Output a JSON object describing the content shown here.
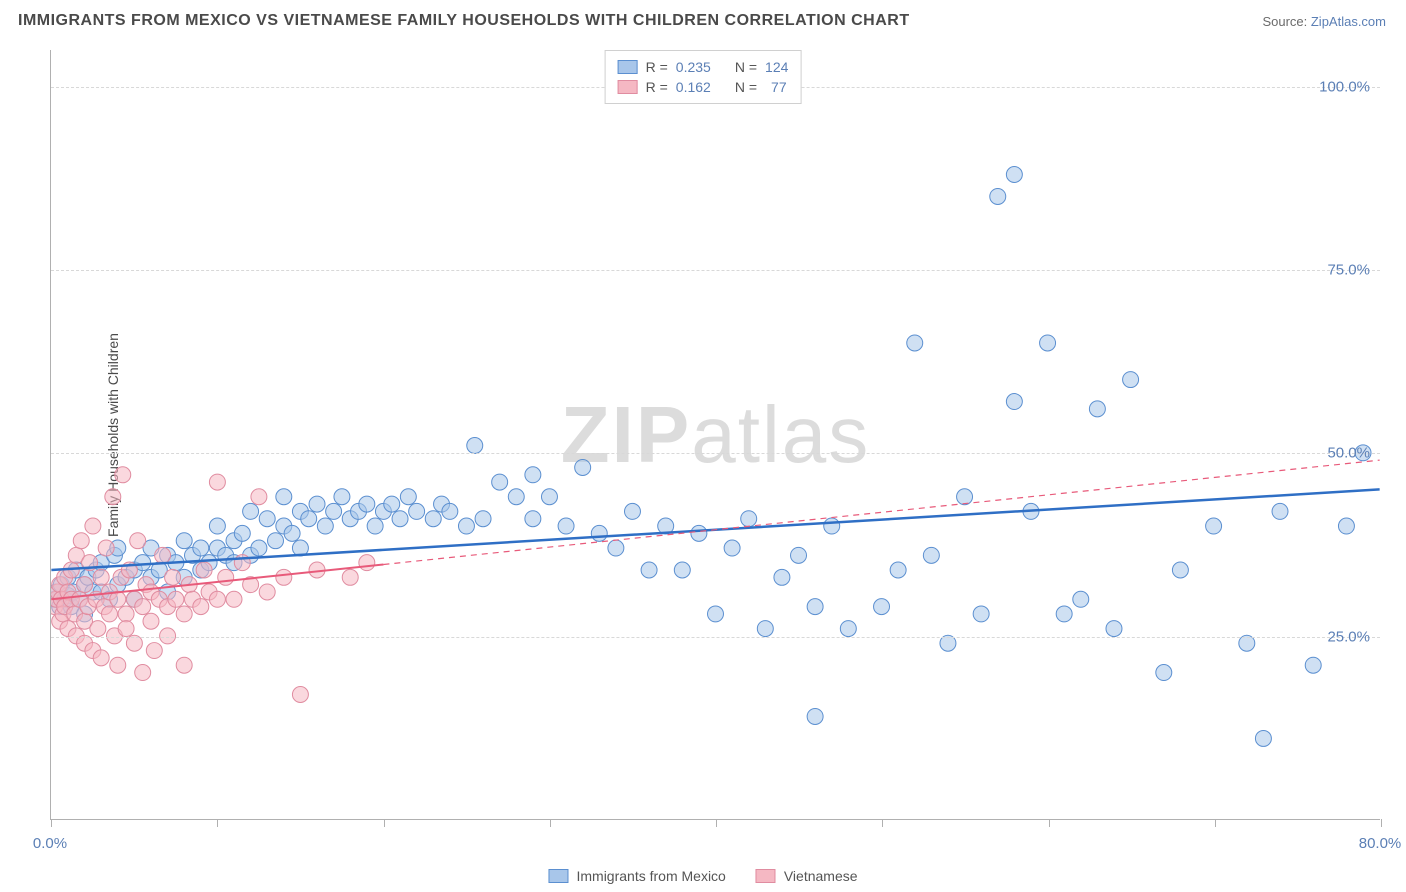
{
  "title": "IMMIGRANTS FROM MEXICO VS VIETNAMESE FAMILY HOUSEHOLDS WITH CHILDREN CORRELATION CHART",
  "source_prefix": "Source: ",
  "source_name": "ZipAtlas.com",
  "watermark_bold": "ZIP",
  "watermark_light": "atlas",
  "ylabel": "Family Households with Children",
  "chart": {
    "type": "scatter",
    "xlim": [
      0,
      80
    ],
    "ylim": [
      0,
      105
    ],
    "x_ticks": [
      0,
      10,
      20,
      30,
      40,
      50,
      60,
      70,
      80
    ],
    "y_gridlines": [
      25,
      50,
      75,
      100
    ],
    "x_tick_labels": {
      "0": "0.0%",
      "80": "80.0%"
    },
    "y_tick_labels": {
      "25": "25.0%",
      "50": "50.0%",
      "75": "75.0%",
      "100": "100.0%"
    },
    "background_color": "#ffffff",
    "grid_color": "#d8d8d8",
    "axis_color": "#b0b0b0",
    "tick_label_color": "#5b7fb5",
    "marker_radius": 8,
    "marker_opacity": 0.55,
    "series": [
      {
        "name": "Immigrants from Mexico",
        "fill_color": "#a8c6ea",
        "stroke_color": "#5b8fd0",
        "line_color": "#2f6fc5",
        "line_width": 2.5,
        "line_dash": "",
        "r_value": "0.235",
        "n_value": "124",
        "trend": {
          "x1": 0,
          "y1": 34,
          "x2": 80,
          "y2": 45
        },
        "extrapolate": false,
        "points": [
          [
            0.2,
            30
          ],
          [
            0.3,
            31
          ],
          [
            0.5,
            29
          ],
          [
            0.6,
            32
          ],
          [
            0.8,
            30
          ],
          [
            1,
            30.5
          ],
          [
            1,
            33
          ],
          [
            1.2,
            29
          ],
          [
            1.3,
            31
          ],
          [
            1.5,
            34
          ],
          [
            1.7,
            30
          ],
          [
            2,
            32
          ],
          [
            2,
            28
          ],
          [
            2.2,
            33
          ],
          [
            2.5,
            31
          ],
          [
            2.7,
            34
          ],
          [
            3,
            31
          ],
          [
            3,
            35
          ],
          [
            3.5,
            30
          ],
          [
            3.8,
            36
          ],
          [
            4,
            32
          ],
          [
            4,
            37
          ],
          [
            4.5,
            33
          ],
          [
            5,
            34
          ],
          [
            5,
            30
          ],
          [
            5.5,
            35
          ],
          [
            6,
            33
          ],
          [
            6,
            37
          ],
          [
            6.5,
            34
          ],
          [
            7,
            36
          ],
          [
            7,
            31
          ],
          [
            7.5,
            35
          ],
          [
            8,
            33
          ],
          [
            8,
            38
          ],
          [
            8.5,
            36
          ],
          [
            9,
            37
          ],
          [
            9,
            34
          ],
          [
            9.5,
            35
          ],
          [
            10,
            37
          ],
          [
            10,
            40
          ],
          [
            10.5,
            36
          ],
          [
            11,
            38
          ],
          [
            11,
            35
          ],
          [
            11.5,
            39
          ],
          [
            12,
            36
          ],
          [
            12,
            42
          ],
          [
            12.5,
            37
          ],
          [
            13,
            41
          ],
          [
            13.5,
            38
          ],
          [
            14,
            40
          ],
          [
            14,
            44
          ],
          [
            14.5,
            39
          ],
          [
            15,
            42
          ],
          [
            15,
            37
          ],
          [
            15.5,
            41
          ],
          [
            16,
            43
          ],
          [
            16.5,
            40
          ],
          [
            17,
            42
          ],
          [
            17.5,
            44
          ],
          [
            18,
            41
          ],
          [
            18.5,
            42
          ],
          [
            19,
            43
          ],
          [
            19.5,
            40
          ],
          [
            20,
            42
          ],
          [
            20.5,
            43
          ],
          [
            21,
            41
          ],
          [
            21.5,
            44
          ],
          [
            22,
            42
          ],
          [
            23,
            41
          ],
          [
            23.5,
            43
          ],
          [
            24,
            42
          ],
          [
            25,
            40
          ],
          [
            25.5,
            51
          ],
          [
            26,
            41
          ],
          [
            27,
            46
          ],
          [
            28,
            44
          ],
          [
            29,
            41
          ],
          [
            29,
            47
          ],
          [
            30,
            44
          ],
          [
            31,
            40
          ],
          [
            32,
            48
          ],
          [
            33,
            39
          ],
          [
            34,
            37
          ],
          [
            35,
            42
          ],
          [
            36,
            34
          ],
          [
            37,
            40
          ],
          [
            38,
            34
          ],
          [
            39,
            39
          ],
          [
            40,
            28
          ],
          [
            41,
            37
          ],
          [
            42,
            41
          ],
          [
            43,
            26
          ],
          [
            44,
            33
          ],
          [
            45,
            36
          ],
          [
            46,
            29
          ],
          [
            47,
            40
          ],
          [
            48,
            26
          ],
          [
            50,
            29
          ],
          [
            51,
            34
          ],
          [
            52,
            65
          ],
          [
            53,
            36
          ],
          [
            54,
            24
          ],
          [
            55,
            44
          ],
          [
            56,
            28
          ],
          [
            57,
            85
          ],
          [
            58,
            88
          ],
          [
            58,
            57
          ],
          [
            59,
            42
          ],
          [
            60,
            65
          ],
          [
            61,
            28
          ],
          [
            62,
            30
          ],
          [
            63,
            56
          ],
          [
            64,
            26
          ],
          [
            65,
            60
          ],
          [
            67,
            20
          ],
          [
            68,
            34
          ],
          [
            70,
            40
          ],
          [
            72,
            24
          ],
          [
            73,
            11
          ],
          [
            74,
            42
          ],
          [
            76,
            21
          ],
          [
            78,
            40
          ],
          [
            79,
            50
          ],
          [
            46,
            14
          ]
        ]
      },
      {
        "name": "Vietnamese",
        "fill_color": "#f5b8c3",
        "stroke_color": "#e08ca0",
        "line_color": "#e85a7a",
        "line_width": 2,
        "line_dash": "6,5",
        "r_value": "0.162",
        "n_value": "77",
        "trend": {
          "x1": 0,
          "y1": 30,
          "x2": 80,
          "y2": 49
        },
        "extrapolate_from_x": 20,
        "points": [
          [
            0.2,
            29
          ],
          [
            0.3,
            30
          ],
          [
            0.4,
            31
          ],
          [
            0.5,
            27
          ],
          [
            0.5,
            32
          ],
          [
            0.6,
            30
          ],
          [
            0.7,
            28
          ],
          [
            0.8,
            33
          ],
          [
            0.8,
            29
          ],
          [
            1,
            31
          ],
          [
            1,
            26
          ],
          [
            1.2,
            30
          ],
          [
            1.2,
            34
          ],
          [
            1.4,
            28
          ],
          [
            1.5,
            36
          ],
          [
            1.5,
            25
          ],
          [
            1.7,
            30
          ],
          [
            1.8,
            38
          ],
          [
            2,
            27
          ],
          [
            2,
            24
          ],
          [
            2,
            32
          ],
          [
            2.2,
            29
          ],
          [
            2.3,
            35
          ],
          [
            2.5,
            40
          ],
          [
            2.5,
            23
          ],
          [
            2.7,
            30
          ],
          [
            2.8,
            26
          ],
          [
            3,
            33
          ],
          [
            3,
            22
          ],
          [
            3.2,
            29
          ],
          [
            3.3,
            37
          ],
          [
            3.5,
            28
          ],
          [
            3.5,
            31
          ],
          [
            3.7,
            44
          ],
          [
            3.8,
            25
          ],
          [
            4,
            30
          ],
          [
            4,
            21
          ],
          [
            4.2,
            33
          ],
          [
            4.3,
            47
          ],
          [
            4.5,
            28
          ],
          [
            4.5,
            26
          ],
          [
            4.7,
            34
          ],
          [
            5,
            30
          ],
          [
            5,
            24
          ],
          [
            5.2,
            38
          ],
          [
            5.5,
            29
          ],
          [
            5.5,
            20
          ],
          [
            5.7,
            32
          ],
          [
            6,
            27
          ],
          [
            6,
            31
          ],
          [
            6.2,
            23
          ],
          [
            6.5,
            30
          ],
          [
            6.7,
            36
          ],
          [
            7,
            29
          ],
          [
            7,
            25
          ],
          [
            7.3,
            33
          ],
          [
            7.5,
            30
          ],
          [
            8,
            28
          ],
          [
            8,
            21
          ],
          [
            8.3,
            32
          ],
          [
            8.5,
            30
          ],
          [
            9,
            29
          ],
          [
            9.2,
            34
          ],
          [
            9.5,
            31
          ],
          [
            10,
            30
          ],
          [
            10,
            46
          ],
          [
            10.5,
            33
          ],
          [
            11,
            30
          ],
          [
            11.5,
            35
          ],
          [
            12,
            32
          ],
          [
            12.5,
            44
          ],
          [
            13,
            31
          ],
          [
            14,
            33
          ],
          [
            15,
            17
          ],
          [
            16,
            34
          ],
          [
            18,
            33
          ],
          [
            19,
            35
          ]
        ]
      }
    ]
  },
  "legend_top": {
    "r_label": "R =",
    "n_label": "N ="
  },
  "legend_bottom": {
    "series1": "Immigrants from Mexico",
    "series2": "Vietnamese"
  }
}
